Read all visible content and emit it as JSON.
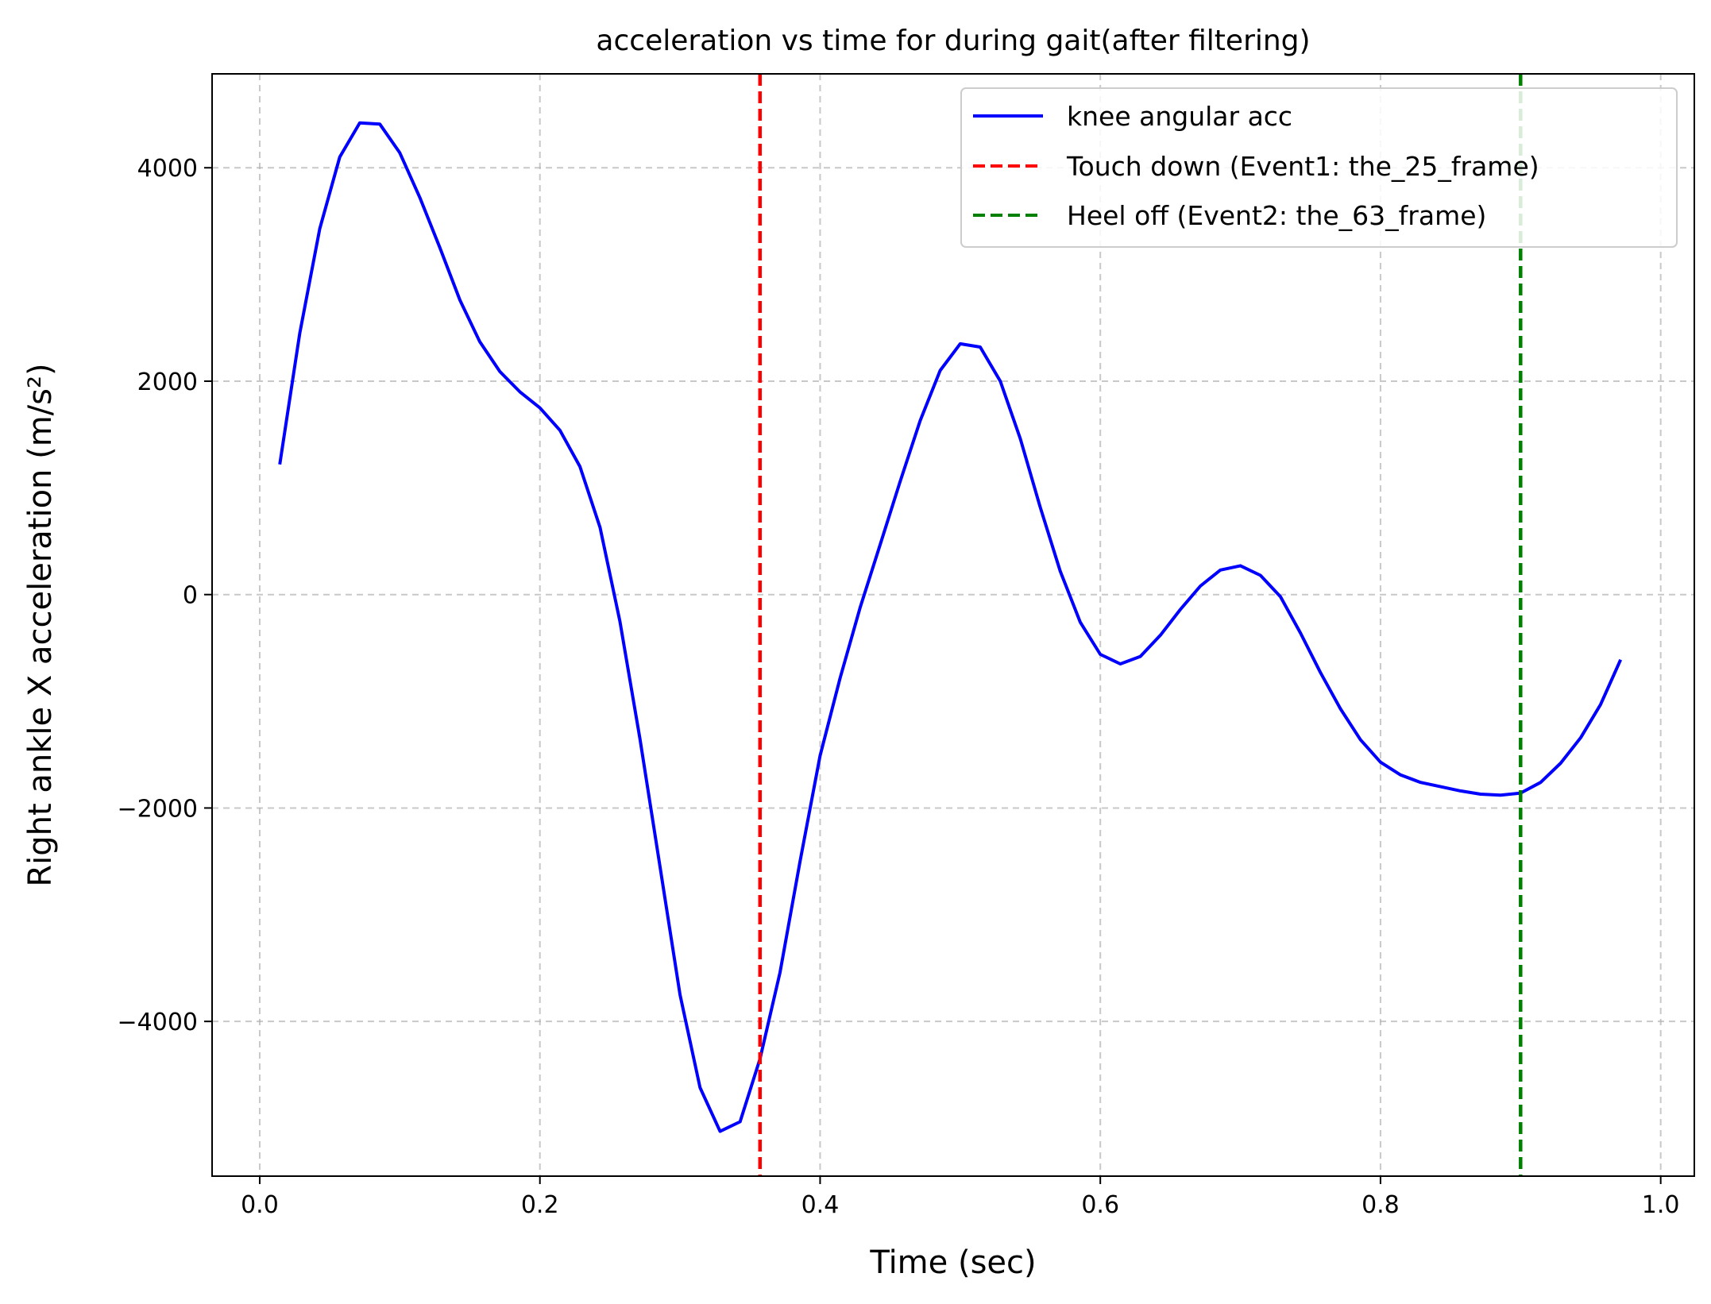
{
  "chart_data": {
    "type": "line",
    "title": "acceleration vs time for during gait(after filtering)",
    "xlabel": "Time (sec)",
    "ylabel": "Right ankle X acceleration  (m/s²)",
    "xlim": [
      -0.034,
      1.024
    ],
    "ylim": [
      -5450,
      4880
    ],
    "xticks": [
      0.0,
      0.2,
      0.4,
      0.6,
      0.8,
      1.0
    ],
    "xtick_labels": [
      "0.0",
      "0.2",
      "0.4",
      "0.6",
      "0.8",
      "1.0"
    ],
    "yticks": [
      -4000,
      -2000,
      0,
      2000,
      4000
    ],
    "ytick_labels": [
      "−4000",
      "−2000",
      "0",
      "2000",
      "4000"
    ],
    "grid": true,
    "legend_position": "top-right",
    "series": [
      {
        "name": "knee angular acc",
        "color": "#0000ff",
        "style": "solid",
        "x": [
          0.0143,
          0.0286,
          0.0429,
          0.0571,
          0.0714,
          0.0857,
          0.1,
          0.1143,
          0.1286,
          0.1429,
          0.1571,
          0.1714,
          0.1857,
          0.2,
          0.2143,
          0.2286,
          0.2429,
          0.2571,
          0.2714,
          0.2857,
          0.3,
          0.3143,
          0.3286,
          0.3429,
          0.3571,
          0.3714,
          0.3857,
          0.4,
          0.4143,
          0.4286,
          0.4429,
          0.4571,
          0.4714,
          0.4857,
          0.5,
          0.5143,
          0.5286,
          0.5429,
          0.5571,
          0.5714,
          0.5857,
          0.6,
          0.6143,
          0.6286,
          0.6429,
          0.6571,
          0.6714,
          0.6857,
          0.7,
          0.7143,
          0.7286,
          0.7429,
          0.7571,
          0.7714,
          0.7857,
          0.8,
          0.8143,
          0.8286,
          0.8429,
          0.8571,
          0.8714,
          0.8857,
          0.9,
          0.9143,
          0.9286,
          0.9429,
          0.9571,
          0.9714
        ],
        "y": [
          1220,
          2450,
          3430,
          4100,
          4420,
          4410,
          4140,
          3720,
          3250,
          2760,
          2370,
          2090,
          1900,
          1750,
          1540,
          1200,
          630,
          -250,
          -1350,
          -2550,
          -3750,
          -4620,
          -5030,
          -4940,
          -4350,
          -3540,
          -2500,
          -1510,
          -780,
          -120,
          470,
          1060,
          1630,
          2100,
          2350,
          2320,
          2000,
          1460,
          820,
          220,
          -260,
          -560,
          -650,
          -580,
          -380,
          -140,
          80,
          230,
          270,
          180,
          -20,
          -360,
          -730,
          -1070,
          -1360,
          -1570,
          -1690,
          -1760,
          -1800,
          -1840,
          -1870,
          -1880,
          -1860,
          -1760,
          -1580,
          -1340,
          -1030,
          -610
        ]
      },
      {
        "name": "Touch down (Event1: the_25_frame)",
        "color": "#ff0000",
        "style": "dashed",
        "x_value": 0.3571
      },
      {
        "name": "Heel off (Event2: the_63_frame)",
        "color": "#008000",
        "style": "dashed",
        "x_value": 0.9
      }
    ]
  }
}
